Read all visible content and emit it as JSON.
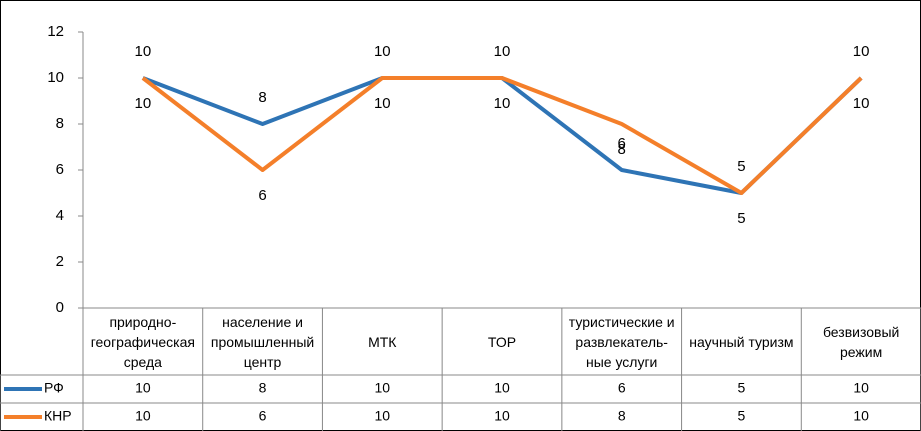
{
  "chart_data": {
    "type": "line",
    "categories": [
      "природно-\nгеографическая\nсреда",
      "население и\nпромышленный\nцентр",
      "МТК",
      "ТОР",
      "туристические и\nразвлекатель-\nные услуги",
      "научный туризм",
      "безвизовый\nрежим"
    ],
    "series": [
      {
        "name": "РФ",
        "color": "#2e74b5",
        "values": [
          10,
          8,
          10,
          10,
          6,
          5,
          10
        ]
      },
      {
        "name": "КНР",
        "color": "#f47f2a",
        "values": [
          10,
          6,
          10,
          10,
          8,
          5,
          10
        ]
      }
    ],
    "ylim": [
      0,
      12
    ],
    "yticks": [
      0,
      2,
      4,
      6,
      8,
      10,
      12
    ],
    "grid": false,
    "data_table": true
  }
}
